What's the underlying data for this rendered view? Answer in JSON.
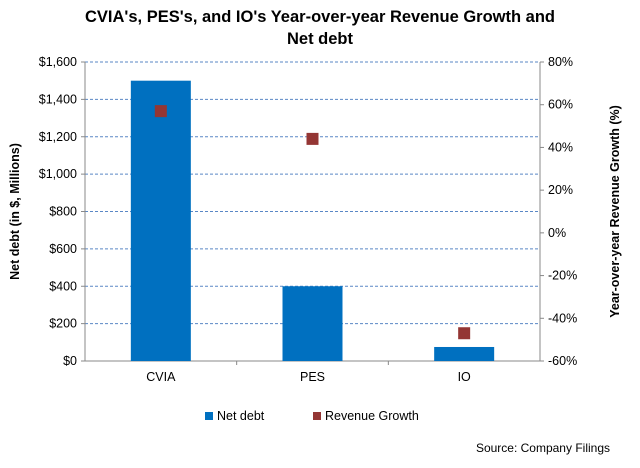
{
  "chart_data": {
    "type": "bar",
    "title_line1": "CVIA's,  PES's, and IO's Year-over-year Revenue Growth  and",
    "title_line2": "Net debt",
    "categories": [
      "CVIA",
      "PES",
      "IO"
    ],
    "series": [
      {
        "name": "Net debt",
        "type": "bar",
        "axis": "left",
        "values": [
          1500,
          400,
          75
        ],
        "color": "#0070C0"
      },
      {
        "name": "Revenue Growth",
        "type": "scatter",
        "axis": "right",
        "values": [
          57,
          44,
          -47
        ],
        "color": "#943634"
      }
    ],
    "y_left": {
      "label": "Net debt (in $, Millions)",
      "ylim": [
        0,
        1600
      ],
      "ticks": [
        "$0",
        "$200",
        "$400",
        "$600",
        "$800",
        "$1,000",
        "$1,200",
        "$1,400",
        "$1,600"
      ]
    },
    "y_right": {
      "label": "Year-over-year Revenue Growth (%)",
      "ylim": [
        -60,
        80
      ],
      "ticks": [
        "-60%",
        "-40%",
        "-20%",
        "0%",
        "20%",
        "40%",
        "60%",
        "80%"
      ]
    },
    "grid": true,
    "legend_position": "bottom",
    "source": "Source: Company Filings"
  }
}
